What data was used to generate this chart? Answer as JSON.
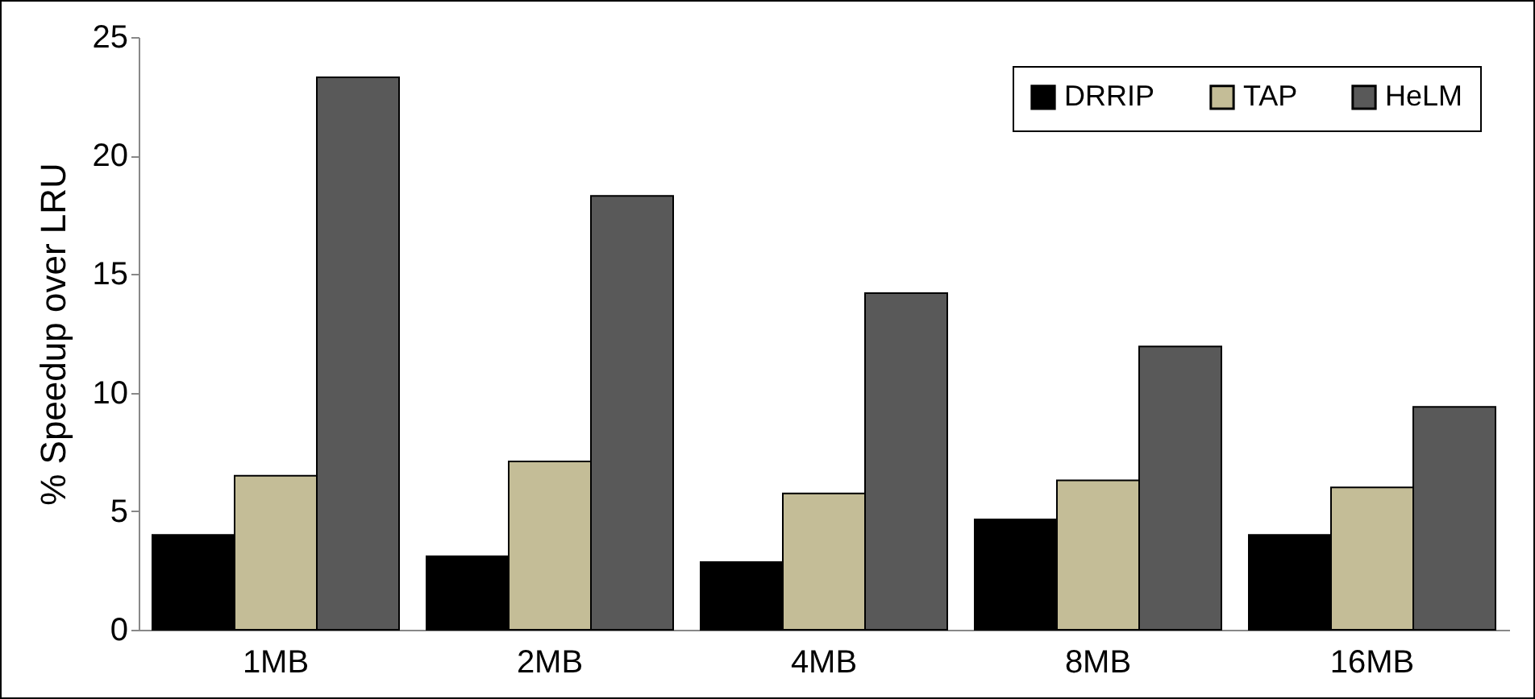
{
  "chart_data": {
    "type": "bar",
    "ylabel": "% Speedup over LRU",
    "categories": [
      "1MB",
      "2MB",
      "4MB",
      "8MB",
      "16MB"
    ],
    "series": [
      {
        "name": "DRRIP",
        "color": "#000000",
        "values": [
          4.0,
          3.1,
          2.85,
          4.65,
          4.0
        ]
      },
      {
        "name": "TAP",
        "color": "#c4bd97",
        "values": [
          6.5,
          7.1,
          5.75,
          6.3,
          6.0
        ]
      },
      {
        "name": "HeLM",
        "color": "#595959",
        "values": [
          23.3,
          18.3,
          14.2,
          11.95,
          9.4
        ]
      }
    ],
    "ylim": [
      0,
      25
    ],
    "yticks": [
      0,
      5,
      10,
      15,
      20,
      25
    ],
    "grid": false,
    "legend": "top right"
  }
}
